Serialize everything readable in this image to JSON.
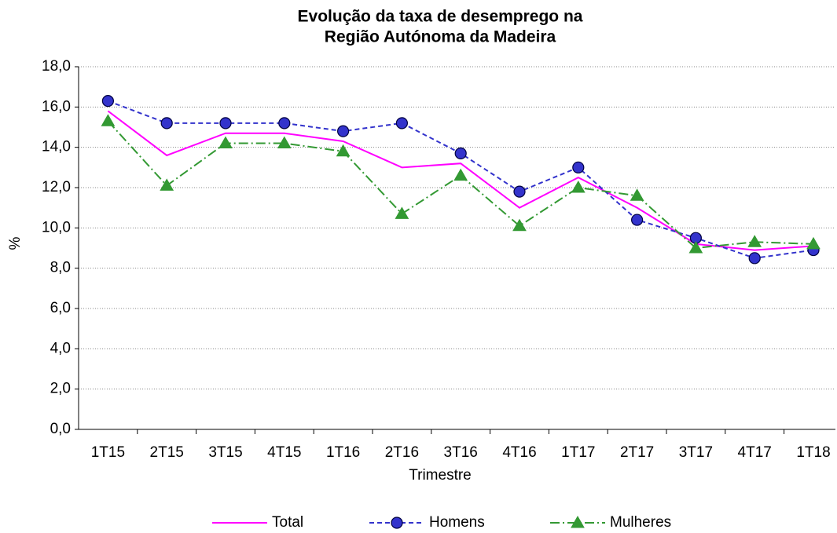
{
  "chart_data": {
    "type": "line",
    "title": [
      "Evolução da taxa de desemprego na",
      "Região Autónoma da Madeira"
    ],
    "x_label": "Trimestre",
    "y_label": "%",
    "categories": [
      "1T15",
      "2T15",
      "3T15",
      "4T15",
      "1T16",
      "2T16",
      "3T16",
      "4T16",
      "1T17",
      "2T17",
      "3T17",
      "4T17",
      "1T18"
    ],
    "series": [
      {
        "name": "Total",
        "color": "#ff00ff",
        "values": [
          15.8,
          13.6,
          14.7,
          14.7,
          14.3,
          13.0,
          13.2,
          11.0,
          12.5,
          11.0,
          9.2,
          8.9,
          9.1
        ]
      },
      {
        "name": "Homens",
        "color": "#3333cc",
        "values": [
          16.3,
          15.2,
          15.2,
          15.2,
          14.8,
          15.2,
          13.7,
          11.8,
          13.0,
          10.4,
          9.5,
          8.5,
          8.9
        ]
      },
      {
        "name": "Mulheres",
        "color": "#339933",
        "values": [
          15.3,
          12.1,
          14.2,
          14.2,
          13.8,
          10.7,
          12.6,
          10.1,
          12.0,
          11.6,
          9.0,
          9.3,
          9.2
        ]
      }
    ],
    "ylim": [
      0,
      18
    ],
    "yticks": [
      {
        "value": 0,
        "label": "0,0"
      },
      {
        "value": 2,
        "label": "2,0"
      },
      {
        "value": 4,
        "label": "4,0"
      },
      {
        "value": 6,
        "label": "6,0"
      },
      {
        "value": 8,
        "label": "8,0"
      },
      {
        "value": 10,
        "label": "10,0"
      },
      {
        "value": 12,
        "label": "12,0"
      },
      {
        "value": 14,
        "label": "14,0"
      },
      {
        "value": 16,
        "label": "16,0"
      },
      {
        "value": 18,
        "label": "18,0"
      }
    ],
    "grid": true,
    "legend": "bottom"
  }
}
